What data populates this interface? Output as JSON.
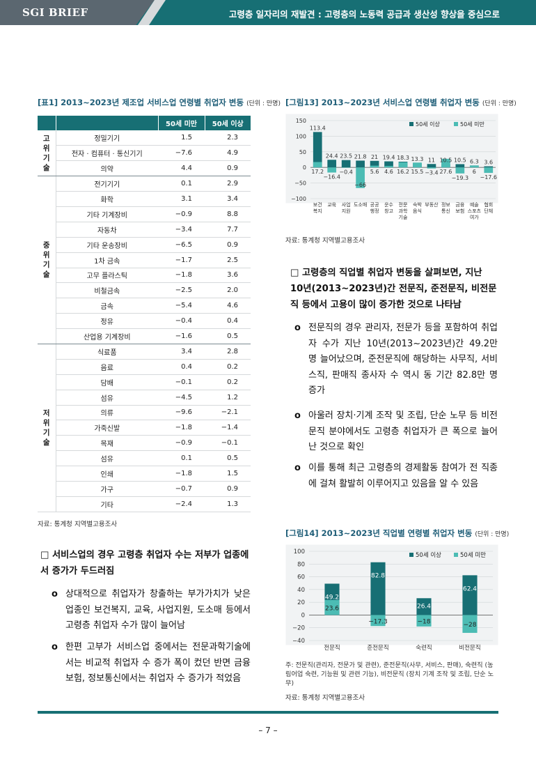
{
  "header": {
    "brand": "SGI BRIEF",
    "title": "고령층 일자리의 재발견 : 고령층의 노동력 공급과 생산성 향상을 중심으로"
  },
  "table1": {
    "caption": "[표1] 2013~2023년 제조업 서비스업 연령별 취업자 변동",
    "unit": "(단위 : 만명)",
    "headers": [
      "50세 미만",
      "50세 이상"
    ],
    "groups": [
      {
        "label": "고\n위\n기\n술",
        "rows": [
          {
            "name": "정밀기기",
            "u50": "1.5",
            "o50": "2.3"
          },
          {
            "name": "전자 · 컴퓨터 · 통신기기",
            "u50": "−7.6",
            "o50": "4.9"
          },
          {
            "name": "의약",
            "u50": "4.4",
            "o50": "0.9"
          }
        ]
      },
      {
        "label": "중\n위\n기\n술",
        "rows": [
          {
            "name": "전기기기",
            "u50": "0.1",
            "o50": "2.9"
          },
          {
            "name": "화학",
            "u50": "3.1",
            "o50": "3.4"
          },
          {
            "name": "기타 기계장비",
            "u50": "−0.9",
            "o50": "8.8"
          },
          {
            "name": "자동차",
            "u50": "−3.4",
            "o50": "7.7"
          },
          {
            "name": "기타 운송장비",
            "u50": "−6.5",
            "o50": "0.9"
          },
          {
            "name": "1차 금속",
            "u50": "−1.7",
            "o50": "2.5"
          },
          {
            "name": "고무 플라스틱",
            "u50": "−1.8",
            "o50": "3.6"
          },
          {
            "name": "비철금속",
            "u50": "−2.5",
            "o50": "2.0"
          },
          {
            "name": "금속",
            "u50": "−5.4",
            "o50": "4.6"
          },
          {
            "name": "정유",
            "u50": "−0.4",
            "o50": "0.4"
          },
          {
            "name": "산업용 기계장비",
            "u50": "−1.6",
            "o50": "0.5"
          }
        ]
      },
      {
        "label": "저\n위\n기\n술",
        "rows": [
          {
            "name": "식료품",
            "u50": "3.4",
            "o50": "2.8"
          },
          {
            "name": "음료",
            "u50": "0.4",
            "o50": "0.2"
          },
          {
            "name": "담배",
            "u50": "−0.1",
            "o50": "0.2"
          },
          {
            "name": "섬유",
            "u50": "−4.5",
            "o50": "1.2"
          },
          {
            "name": "의류",
            "u50": "−9.6",
            "o50": "−2.1"
          },
          {
            "name": "가죽신발",
            "u50": "−1.8",
            "o50": "−1.4"
          },
          {
            "name": "목재",
            "u50": "−0.9",
            "o50": "−0.1"
          },
          {
            "name": "섬유",
            "u50": "0.1",
            "o50": "0.5"
          },
          {
            "name": "인쇄",
            "u50": "−1.8",
            "o50": "1.5"
          },
          {
            "name": "가구",
            "u50": "−0.7",
            "o50": "0.9"
          },
          {
            "name": "기타",
            "u50": "−2.4",
            "o50": "1.3"
          }
        ]
      }
    ],
    "source": "자료: 통계청 지역별고용조사"
  },
  "left_text": {
    "square": "□ 서비스업의 경우 고령층 취업자 수는 저부가 업종에서 증가가 두드러짐",
    "circles": [
      "상대적으로 취업자가 창출하는 부가가치가 낮은 업종인 보건복지, 교육, 사업지원, 도소매 등에서 고령층 취업자 수가 많이 늘어남",
      "한편 고부가 서비스업 중에서는 전문과학기술에서는 비교적 취업자 수 증가 폭이 컸던 반면 금융보험, 정보통신에서는 취업자 수 증가가 적었음"
    ]
  },
  "figure13": {
    "caption": "[그림13] 2013~2023년 서비스업 연령별 취업자 변동",
    "unit": "(단위 : 만명)",
    "source": "자료: 통계청 지역별고용조사"
  },
  "right_text": {
    "square": "□ 고령층의 직업별 취업자 변동을 살펴보면, 지난 10년(2013~2023년)간 전문직, 준전문직, 비전문직 등에서 고용이 많이 증가한 것으로 나타남",
    "circles": [
      "전문직의 경우 관리자, 전문가 등을 포함하여 취업자 수가 지난 10년(2013~2023년)간 49.2만 명 늘어났으며, 준전문직에 해당하는 사무직, 서비스직, 판매직 종사자 수 역시 동 기간 82.8만 명 증가",
      "아울러 장치·기계 조작 및 조립, 단순 노무 등 비전문직 분야에서도 고령층 취업자가 큰 폭으로 늘어난 것으로 확인",
      "이를 통해 최근 고령층의 경제활동 참여가 전 직종에 걸쳐 활발히 이루어지고 있음을 알 수 있음"
    ]
  },
  "figure14": {
    "caption": "[그림14] 2013~2023년 직업별 연령별 취업자 변동",
    "unit": "(단위 : 만명)",
    "note": "주: 전문직(관리자, 전문가 및 관련), 준전문직(사무, 서비스, 판매), 숙련직 (농림어업 숙련, 기능원 및 관련 기능), 비전문직 (장치 기계 조작 및 조립, 단순 노무)",
    "source": "자료: 통계청 지역별고용조사"
  },
  "colors": {
    "primary": "#176f74",
    "light": "#4cbcb4",
    "header_gray": "#5b6770"
  },
  "chart_data": [
    {
      "type": "bar",
      "title": "[그림13] 2013~2023년 서비스업 연령별 취업자 변동",
      "categories": [
        "보건복지",
        "교육",
        "사업지원",
        "도소매",
        "공공행정",
        "운수창고",
        "전문과학기술",
        "숙박음식",
        "부동산",
        "정보통신",
        "금융보험",
        "예술스포츠여가",
        "협회단체"
      ],
      "series": [
        {
          "name": "50세 이상",
          "values": [
            113.4,
            24.4,
            23.5,
            21.8,
            21,
            19.4,
            18.3,
            13.3,
            11,
            10.5,
            10.5,
            6.3,
            3.6
          ]
        },
        {
          "name": "50세 미만",
          "values": [
            17.2,
            -16.4,
            -0.4,
            -66,
            5.6,
            4.6,
            16.2,
            15.5,
            -3.4,
            27.6,
            -19.3,
            6.0,
            -17.6
          ]
        }
      ],
      "ylim": [
        -100,
        150
      ],
      "yticks": [
        150,
        100,
        50,
        0,
        -50,
        -100
      ],
      "legend": "top-right"
    },
    {
      "type": "bar",
      "title": "[그림14] 2013~2023년 직업별 연령별 취업자 변동",
      "categories": [
        "전문직",
        "준전문직",
        "숙련직",
        "비전문직"
      ],
      "series": [
        {
          "name": "50세 이상",
          "values": [
            49.2,
            82.8,
            26.4,
            62.4
          ]
        },
        {
          "name": "50세 미만",
          "values": [
            23.6,
            -17.3,
            -18.0,
            -28.0
          ]
        }
      ],
      "ylim": [
        -40,
        100
      ],
      "yticks": [
        100,
        80,
        60,
        40,
        20,
        0,
        -20,
        -40
      ],
      "legend": "top-right"
    }
  ],
  "page_number": "– 7 –"
}
